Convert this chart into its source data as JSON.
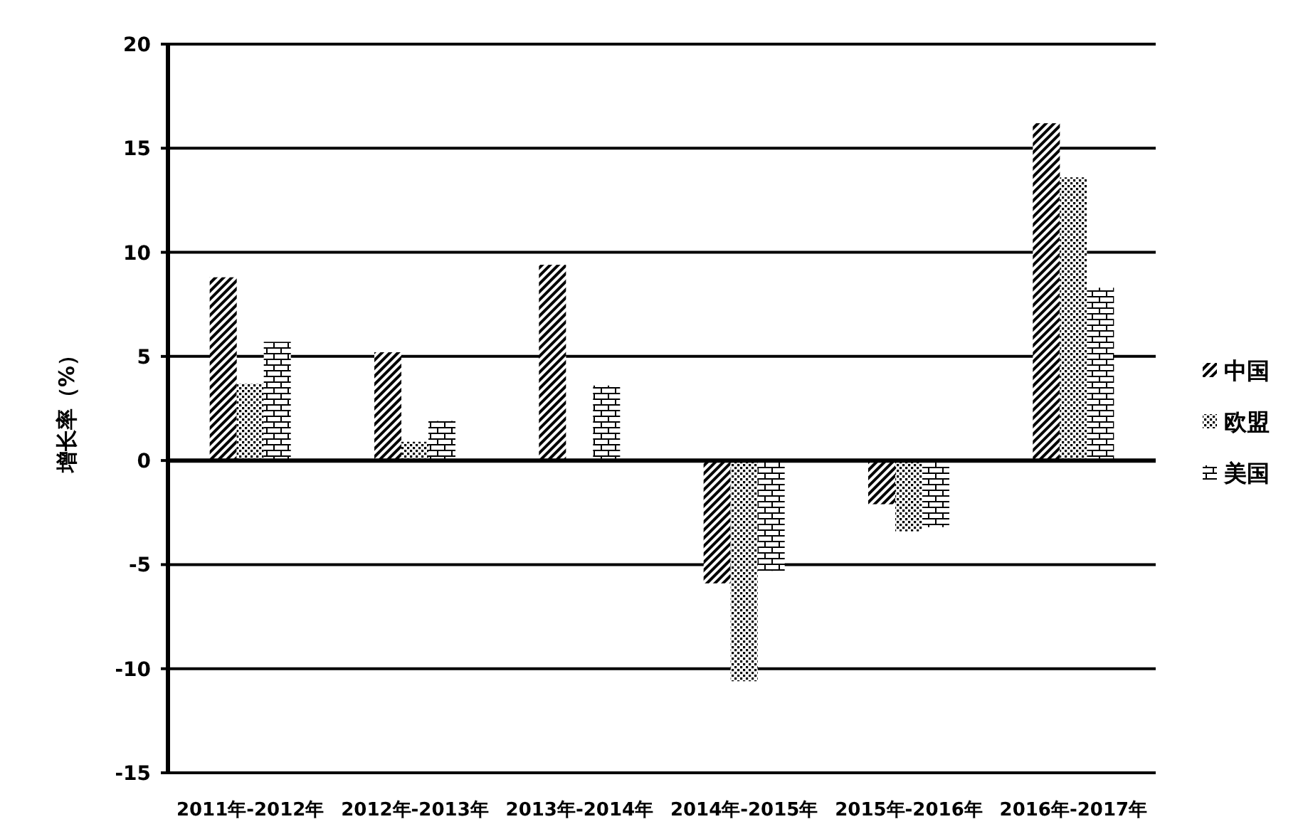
{
  "chart_data": {
    "type": "bar",
    "ylabel": "增长率（%）",
    "categories": [
      "2011年-2012年",
      "2012年-2013年",
      "2013年-2014年",
      "2014年-2015年",
      "2015年-2016年",
      "2016年-2017年"
    ],
    "series": [
      {
        "name": "中国",
        "color": "#000000",
        "values": [
          8.8,
          5.2,
          9.4,
          -5.9,
          -2.1,
          16.2
        ]
      },
      {
        "name": "欧盟",
        "color": "#000000",
        "values": [
          3.7,
          0.9,
          null,
          -10.6,
          -3.4,
          13.6
        ]
      },
      {
        "name": "美国",
        "color": "#000000",
        "values": [
          5.7,
          1.9,
          3.6,
          -5.3,
          -3.2,
          8.3
        ]
      }
    ],
    "ylim": [
      -15,
      20
    ],
    "yticks": [
      -15,
      -10,
      -5,
      0,
      5,
      10,
      15,
      20
    ],
    "grid": "y",
    "legend": "right"
  }
}
